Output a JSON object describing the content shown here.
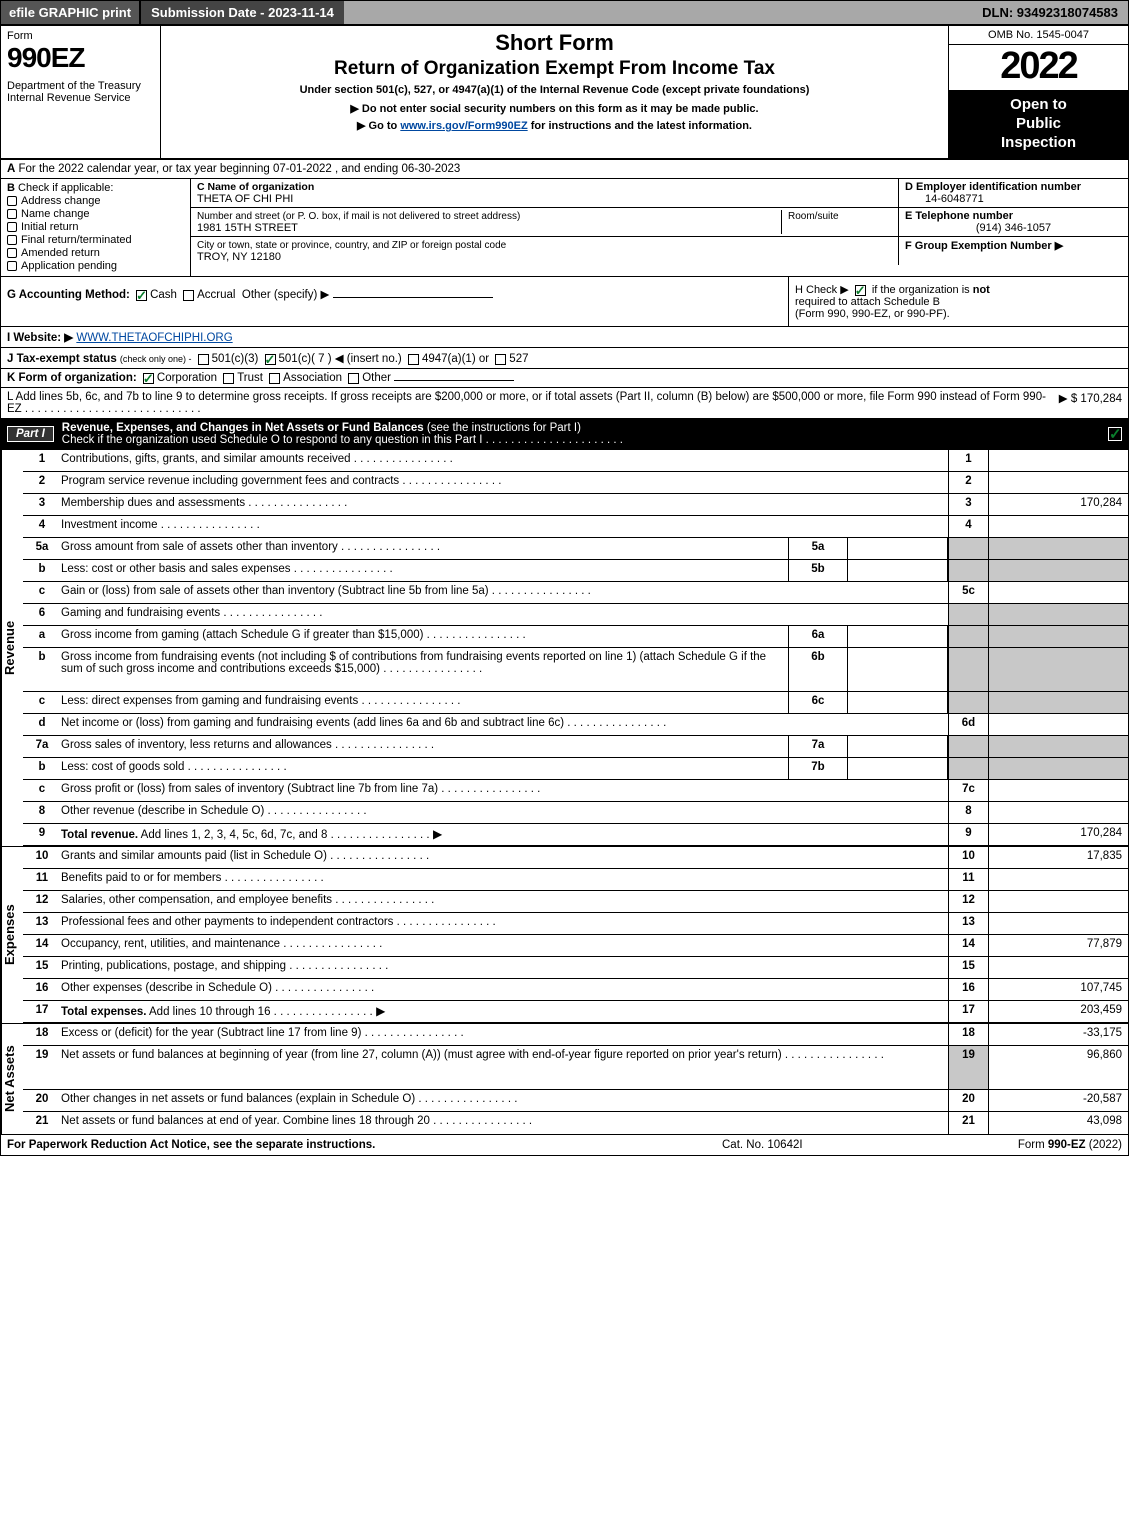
{
  "topbar": {
    "efile": "efile GRAPHIC print",
    "submission": "Submission Date - 2023-11-14",
    "dln": "DLN: 93492318074583"
  },
  "header": {
    "form_word": "Form",
    "form_no": "990EZ",
    "dept1": "Department of the Treasury",
    "dept2": "Internal Revenue Service",
    "title1": "Short Form",
    "title2": "Return of Organization Exempt From Income Tax",
    "subtitle1": "Under section 501(c), 527, or 4947(a)(1) of the Internal Revenue Code (except private foundations)",
    "subtitle2": "▶ Do not enter social security numbers on this form as it may be made public.",
    "subtitle3_pre": "▶ Go to ",
    "subtitle3_link": "www.irs.gov/Form990EZ",
    "subtitle3_post": " for instructions and the latest information.",
    "omb": "OMB No. 1545-0047",
    "year": "2022",
    "open1": "Open to",
    "open2": "Public",
    "open3": "Inspection"
  },
  "rowA": {
    "label": "A",
    "text": "  For the 2022 calendar year, or tax year beginning 07-01-2022  , and ending 06-30-2023"
  },
  "B": {
    "label": "B",
    "intro": "Check if applicable:",
    "opts": [
      "Address change",
      "Name change",
      "Initial return",
      "Final return/terminated",
      "Amended return",
      "Application pending"
    ]
  },
  "C": {
    "name_lbl": "C Name of organization",
    "name_val": "THETA OF CHI PHI",
    "addr_lbl": "Number and street (or P. O. box, if mail is not delivered to street address)",
    "addr_val": "1981 15TH STREET",
    "room_lbl": "Room/suite",
    "city_lbl": "City or town, state or province, country, and ZIP or foreign postal code",
    "city_val": "TROY, NY  12180"
  },
  "D": {
    "lbl": "D Employer identification number",
    "val": "14-6048771"
  },
  "E": {
    "lbl": "E Telephone number",
    "val": "(914) 346-1057"
  },
  "F": {
    "lbl": "F Group Exemption Number  ▶",
    "val": ""
  },
  "G": {
    "label": "G Accounting Method:",
    "cash": "Cash",
    "accrual": "Accrual",
    "other": "Other (specify) ▶"
  },
  "H": {
    "text1": "H   Check ▶",
    "text2": " if the organization is ",
    "not": "not",
    "text3": " required to attach Schedule B",
    "text4": "(Form 990, 990-EZ, or 990-PF)."
  },
  "I": {
    "label": "I Website: ▶",
    "val": "WWW.THETAOFCHIPHI.ORG"
  },
  "J": {
    "label": "J Tax-exempt status",
    "small": "(check only one) -",
    "o1": "501(c)(3)",
    "o2": "501(c)( 7 ) ◀ (insert no.)",
    "o3": "4947(a)(1) or",
    "o4": "527"
  },
  "K": {
    "label": "K Form of organization:",
    "opts": [
      "Corporation",
      "Trust",
      "Association",
      "Other"
    ]
  },
  "L": {
    "text": "L Add lines 5b, 6c, and 7b to line 9 to determine gross receipts. If gross receipts are $200,000 or more, or if total assets (Part II, column (B) below) are $500,000 or more, file Form 990 instead of Form 990-EZ",
    "amount": "▶ $ 170,284"
  },
  "part1": {
    "name": "Part I",
    "title": "Revenue, Expenses, and Changes in Net Assets or Fund Balances",
    "hint": " (see the instructions for Part I)",
    "check_line": "Check if the organization used Schedule O to respond to any question in this Part I"
  },
  "revenue": [
    {
      "n": "1",
      "d": "Contributions, gifts, grants, and similar amounts received",
      "rn": "1",
      "rv": ""
    },
    {
      "n": "2",
      "d": "Program service revenue including government fees and contracts",
      "rn": "2",
      "rv": ""
    },
    {
      "n": "3",
      "d": "Membership dues and assessments",
      "rn": "3",
      "rv": "170,284"
    },
    {
      "n": "4",
      "d": "Investment income",
      "rn": "4",
      "rv": ""
    },
    {
      "n": "5a",
      "d": "Gross amount from sale of assets other than inventory",
      "mid": "5a",
      "noR": true
    },
    {
      "n": "b",
      "d": "Less: cost or other basis and sales expenses",
      "mid": "5b",
      "noR": true
    },
    {
      "n": "c",
      "d": "Gain or (loss) from sale of assets other than inventory (Subtract line 5b from line 5a)",
      "rn": "5c",
      "rv": ""
    },
    {
      "n": "6",
      "d": "Gaming and fundraising events",
      "shadeR": true,
      "noR": true
    },
    {
      "n": "a",
      "d": "Gross income from gaming (attach Schedule G if greater than $15,000)",
      "mid": "6a",
      "noR": true,
      "shadeR": true
    },
    {
      "n": "b",
      "d": "Gross income from fundraising events (not including $                         of contributions from fundraising events reported on line 1) (attach Schedule G if the sum of such gross income and contributions exceeds $15,000)",
      "mid": "6b",
      "noR": true,
      "shadeR": true,
      "tall": true
    },
    {
      "n": "c",
      "d": "Less: direct expenses from gaming and fundraising events",
      "mid": "6c",
      "noR": true,
      "shadeR": true
    },
    {
      "n": "d",
      "d": "Net income or (loss) from gaming and fundraising events (add lines 6a and 6b and subtract line 6c)",
      "rn": "6d",
      "rv": ""
    },
    {
      "n": "7a",
      "d": "Gross sales of inventory, less returns and allowances",
      "mid": "7a",
      "noR": true,
      "shadeR": true
    },
    {
      "n": "b",
      "d": "Less: cost of goods sold",
      "mid": "7b",
      "noR": true,
      "shadeR": true
    },
    {
      "n": "c",
      "d": "Gross profit or (loss) from sales of inventory (Subtract line 7b from line 7a)",
      "rn": "7c",
      "rv": ""
    },
    {
      "n": "8",
      "d": "Other revenue (describe in Schedule O)",
      "rn": "8",
      "rv": ""
    },
    {
      "n": "9",
      "d": "Total revenue. Add lines 1, 2, 3, 4, 5c, 6d, 7c, and 8",
      "rn": "9",
      "rv": "170,284",
      "bold": true,
      "arrow": true
    }
  ],
  "expenses": [
    {
      "n": "10",
      "d": "Grants and similar amounts paid (list in Schedule O)",
      "rn": "10",
      "rv": "17,835"
    },
    {
      "n": "11",
      "d": "Benefits paid to or for members",
      "rn": "11",
      "rv": ""
    },
    {
      "n": "12",
      "d": "Salaries, other compensation, and employee benefits",
      "rn": "12",
      "rv": ""
    },
    {
      "n": "13",
      "d": "Professional fees and other payments to independent contractors",
      "rn": "13",
      "rv": ""
    },
    {
      "n": "14",
      "d": "Occupancy, rent, utilities, and maintenance",
      "rn": "14",
      "rv": "77,879"
    },
    {
      "n": "15",
      "d": "Printing, publications, postage, and shipping",
      "rn": "15",
      "rv": ""
    },
    {
      "n": "16",
      "d": "Other expenses (describe in Schedule O)",
      "rn": "16",
      "rv": "107,745"
    },
    {
      "n": "17",
      "d": "Total expenses. Add lines 10 through 16",
      "rn": "17",
      "rv": "203,459",
      "bold": true,
      "arrow": true
    }
  ],
  "netassets": [
    {
      "n": "18",
      "d": "Excess or (deficit) for the year (Subtract line 17 from line 9)",
      "rn": "18",
      "rv": "-33,175"
    },
    {
      "n": "19",
      "d": "Net assets or fund balances at beginning of year (from line 27, column (A)) (must agree with end-of-year figure reported on prior year's return)",
      "rn": "19",
      "rv": "96,860",
      "tall": true,
      "shadeTop": true
    },
    {
      "n": "20",
      "d": "Other changes in net assets or fund balances (explain in Schedule O)",
      "rn": "20",
      "rv": "-20,587"
    },
    {
      "n": "21",
      "d": "Net assets or fund balances at end of year. Combine lines 18 through 20",
      "rn": "21",
      "rv": "43,098",
      "arrow": false
    }
  ],
  "side": {
    "rev": "Revenue",
    "exp": "Expenses",
    "na": "Net Assets"
  },
  "footer": {
    "left": "For Paperwork Reduction Act Notice, see the separate instructions.",
    "center": "Cat. No. 10642I",
    "right_pre": "Form ",
    "right_b": "990-EZ",
    "right_post": " (2022)"
  },
  "colors": {
    "shade": "#c8c8c8",
    "check_green": "#0a7d2c",
    "link": "#0048a0"
  }
}
